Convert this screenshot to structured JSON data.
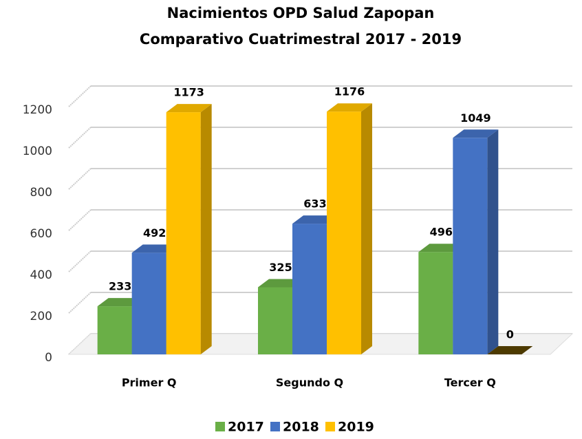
{
  "chart_data": {
    "type": "bar3d",
    "title": "Nacimientos OPD Salud Zapopan",
    "subtitle": "Comparativo Cuatrimestral 2017 - 2019",
    "categories": [
      "Primer Q",
      "Segundo Q",
      "Tercer Q"
    ],
    "series": [
      {
        "name": "2017",
        "color": "#6aaf47",
        "values": [
          233,
          325,
          496
        ]
      },
      {
        "name": "2018",
        "color": "#4472c4",
        "values": [
          492,
          633,
          1049
        ]
      },
      {
        "name": "2019",
        "color": "#ffc000",
        "values": [
          1173,
          1176,
          0
        ]
      }
    ],
    "ylim": [
      0,
      1200
    ],
    "yticks": [
      0,
      200,
      400,
      600,
      800,
      1000,
      1200
    ],
    "grid": true,
    "legend": "bottom"
  }
}
